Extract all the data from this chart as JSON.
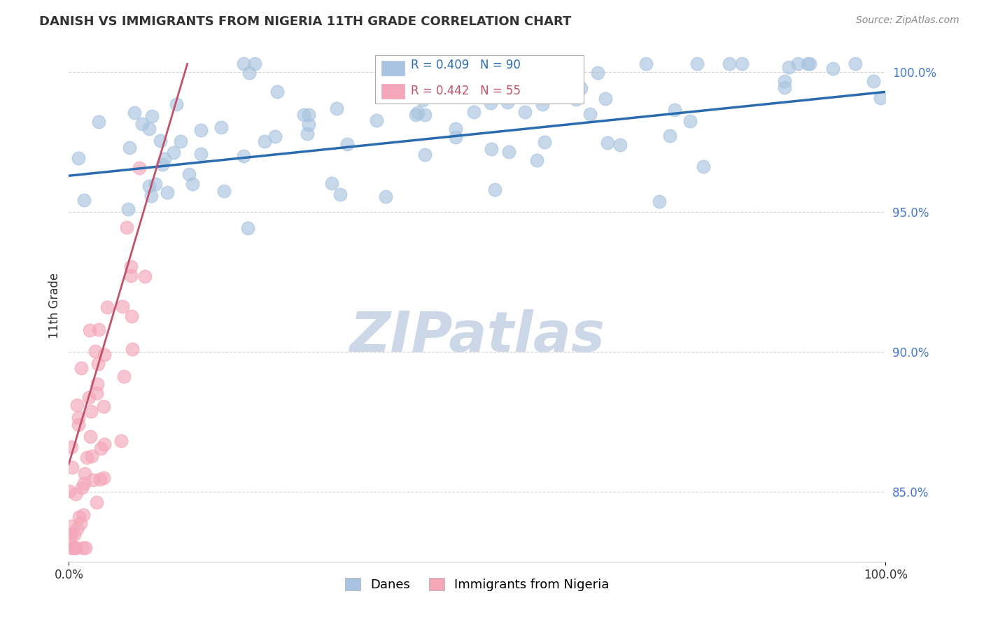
{
  "title": "DANISH VS IMMIGRANTS FROM NIGERIA 11TH GRADE CORRELATION CHART",
  "source": "Source: ZipAtlas.com",
  "ylabel": "11th Grade",
  "xlim": [
    0.0,
    1.0
  ],
  "ylim": [
    0.825,
    1.008
  ],
  "yticks": [
    0.85,
    0.9,
    0.95,
    1.0
  ],
  "ytick_labels": [
    "85.0%",
    "90.0%",
    "95.0%",
    "100.0%"
  ],
  "danes_R": 0.409,
  "danes_N": 90,
  "nigeria_R": 0.442,
  "nigeria_N": 55,
  "danes_color": "#a8c4e0",
  "danes_line_color": "#2b6cb0",
  "nigeria_color": "#f4a7b9",
  "nigeria_line_color": "#c0536a",
  "legend_danes_label": "Danes",
  "legend_nigeria_label": "Immigrants from Nigeria",
  "background_color": "#ffffff",
  "watermark_text": "ZIPatlas",
  "watermark_color": "#ccd8e8",
  "grid_color": "#cccccc",
  "title_color": "#333333",
  "source_color": "#888888",
  "ytick_color": "#4477cc",
  "danes_line_x0": 0.0,
  "danes_line_y0": 0.963,
  "danes_line_x1": 1.0,
  "danes_line_y1": 0.993,
  "nigeria_line_x0": 0.0,
  "nigeria_line_y0": 0.86,
  "nigeria_line_x1": 0.145,
  "nigeria_line_y1": 1.003
}
